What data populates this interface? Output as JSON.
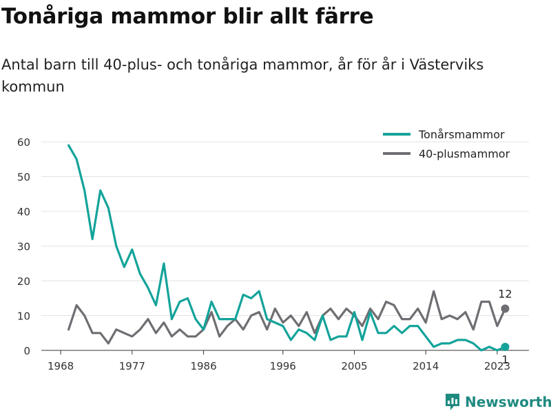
{
  "header": {
    "title": "Tonåriga mammor blir allt färre",
    "subtitle": "Antal barn till 40-plus- och tonåriga mammor, år för år i Västerviks kommun"
  },
  "brand": {
    "name": "Newsworthy",
    "color": "#1f8a80"
  },
  "chart_data": {
    "type": "line",
    "x": [
      1969,
      1970,
      1971,
      1972,
      1973,
      1974,
      1975,
      1976,
      1977,
      1978,
      1979,
      1980,
      1981,
      1982,
      1983,
      1984,
      1985,
      1986,
      1987,
      1988,
      1989,
      1990,
      1991,
      1992,
      1993,
      1994,
      1995,
      1996,
      1997,
      1998,
      1999,
      2000,
      2001,
      2002,
      2003,
      2004,
      2005,
      2006,
      2007,
      2008,
      2009,
      2010,
      2011,
      2012,
      2013,
      2014,
      2015,
      2016,
      2017,
      2018,
      2019,
      2020,
      2021,
      2022,
      2023,
      2024
    ],
    "series": [
      {
        "name": "Tonårsmammor",
        "color": "#13a39a",
        "values": [
          59,
          55,
          46,
          32,
          46,
          41,
          30,
          24,
          29,
          22,
          18,
          13,
          25,
          9,
          14,
          15,
          9,
          6,
          14,
          9,
          9,
          9,
          16,
          15,
          17,
          9,
          8,
          7,
          3,
          6,
          5,
          3,
          10,
          3,
          4,
          4,
          11,
          3,
          11,
          5,
          5,
          7,
          5,
          7,
          7,
          4,
          1,
          2,
          2,
          3,
          3,
          2,
          0,
          1,
          0,
          1
        ]
      },
      {
        "name": "40-plusmammor",
        "color": "#6e6e73",
        "values": [
          6,
          13,
          10,
          5,
          5,
          2,
          6,
          5,
          4,
          6,
          9,
          5,
          8,
          4,
          6,
          4,
          4,
          6,
          11,
          4,
          7,
          9,
          6,
          10,
          11,
          6,
          12,
          8,
          10,
          7,
          11,
          5,
          10,
          12,
          9,
          12,
          10,
          7,
          12,
          9,
          14,
          13,
          9,
          9,
          12,
          8,
          17,
          9,
          10,
          9,
          11,
          6,
          14,
          14,
          7,
          12
        ]
      }
    ],
    "end_labels": [
      "12",
      "1"
    ],
    "x_ticks": [
      "1968",
      "1977",
      "1986",
      "1996",
      "2005",
      "2014",
      "2023"
    ],
    "y_ticks": [
      "0",
      "10",
      "20",
      "30",
      "40",
      "50",
      "60"
    ],
    "ylim": [
      0,
      60
    ],
    "grid": true,
    "legend_position": "top-right"
  }
}
